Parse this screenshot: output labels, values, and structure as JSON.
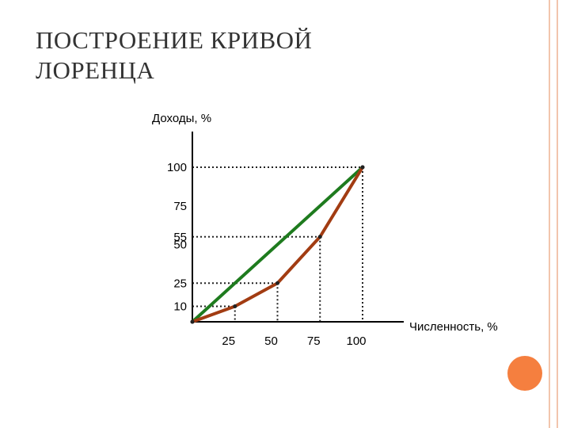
{
  "slide": {
    "title_lines": [
      "ПОСТРОЕНИЕ КРИВОЙ",
      "ЛОРЕНЦА"
    ],
    "frame_color": "#f2c5ad",
    "circle_color": "#f57f3f"
  },
  "chart_data": {
    "type": "line",
    "ylabel": "Доходы, %",
    "xlabel": "Численность, %",
    "xlim": [
      0,
      100
    ],
    "ylim": [
      0,
      100
    ],
    "x_ticks": [
      25,
      50,
      75,
      100
    ],
    "y_ticks": [
      100,
      75,
      55,
      50,
      25,
      10
    ],
    "grid": "dotted guide lines to points",
    "series": [
      {
        "color": "#1e7b1e",
        "x": [
          0,
          100
        ],
        "y": [
          0,
          100
        ]
      },
      {
        "color": "#a23c12",
        "x": [
          0,
          25,
          50,
          75,
          100
        ],
        "y": [
          0,
          10,
          25,
          55,
          100
        ]
      }
    ]
  }
}
